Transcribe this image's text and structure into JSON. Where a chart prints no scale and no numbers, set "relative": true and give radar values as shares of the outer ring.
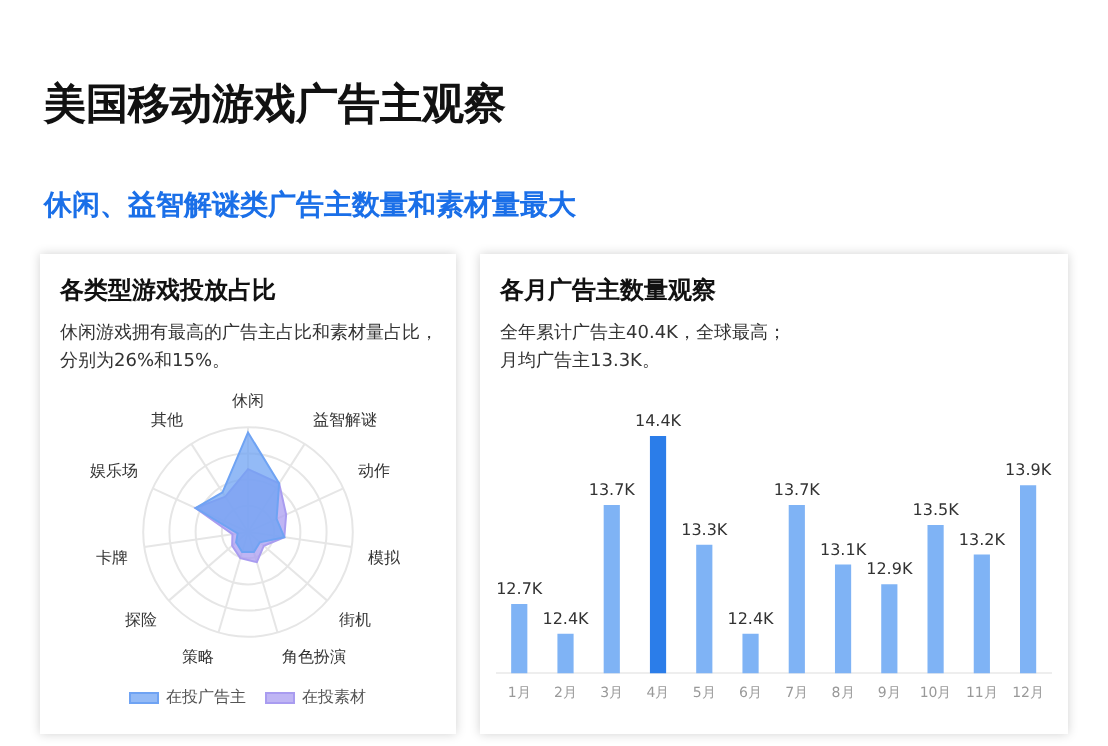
{
  "chart_data": [
    {
      "type": "other",
      "title": "美国移动游戏广告主观察",
      "subtitle": "休闲、益智解谜类广告主数量和素材量最大"
    },
    {
      "type": "radar",
      "title": "各类型游戏投放占比",
      "subtitle": "休闲游戏拥有最高的广告主占比和素材量占比，分别为26%和15%。",
      "relative": true,
      "legend": "bottom",
      "categories": [
        "休闲",
        "益智解谜",
        "动作",
        "模拟",
        "街机",
        "角色扮演",
        "策略",
        "探险",
        "卡牌",
        "娱乐场",
        "其他"
      ],
      "series": [
        {
          "name": "在投广告主",
          "color": "#6fa3f3",
          "values": [
            0.95,
            0.55,
            0.3,
            0.35,
            0.15,
            0.2,
            0.2,
            0.15,
            0.1,
            0.55,
            0.45
          ]
        },
        {
          "name": "在投素材",
          "color": "#a99cf0",
          "values": [
            0.6,
            0.55,
            0.4,
            0.35,
            0.2,
            0.3,
            0.26,
            0.2,
            0.15,
            0.55,
            0.4
          ]
        }
      ]
    },
    {
      "type": "bar",
      "title": "各月广告主数量观察",
      "subtitle": "全年累计广告主40.4K，全球最高；月均广告主13.3K。",
      "tick_labels": "x",
      "grid": false,
      "categories": [
        "1月",
        "2月",
        "3月",
        "4月",
        "5月",
        "6月",
        "7月",
        "8月",
        "9月",
        "10月",
        "11月",
        "12月"
      ],
      "values": [
        12.7,
        12.4,
        13.7,
        14.4,
        13.3,
        12.4,
        13.7,
        13.1,
        12.9,
        13.5,
        13.2,
        13.9
      ],
      "colors": [
        "#7fb3f5",
        "#7fb3f5",
        "#7fb3f5",
        "#2b7de9",
        "#7fb3f5",
        "#7fb3f5",
        "#7fb3f5",
        "#7fb3f5",
        "#7fb3f5",
        "#7fb3f5",
        "#7fb3f5",
        "#7fb3f5"
      ],
      "value_labels": [
        "12.7K",
        "12.4K",
        "13.7K",
        "14.4K",
        "13.3K",
        "12.4K",
        "13.7K",
        "13.1K",
        "12.9K",
        "13.5K",
        "13.2K",
        "13.9K"
      ]
    }
  ]
}
